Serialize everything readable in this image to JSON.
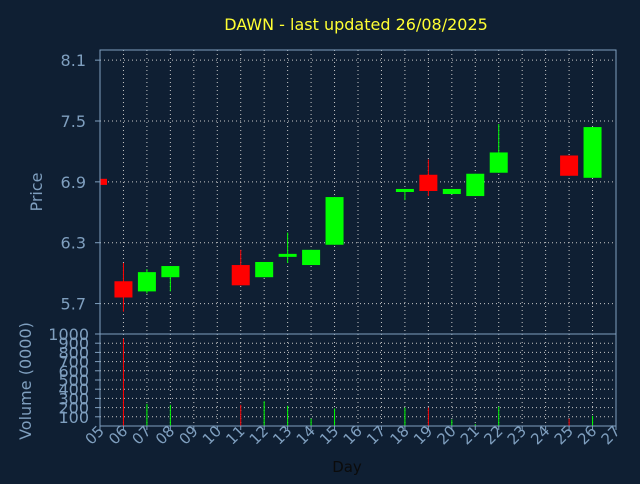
{
  "chart_data": {
    "type": "candlestick",
    "title": "DAWN - last updated 26/08/2025",
    "xlabel": "Day",
    "x_ticks": [
      "05",
      "06",
      "07",
      "08",
      "09",
      "10",
      "11",
      "12",
      "13",
      "14",
      "15",
      "16",
      "17",
      "18",
      "19",
      "20",
      "21",
      "22",
      "23",
      "24",
      "25",
      "26",
      "27"
    ],
    "price_panel": {
      "ylabel": "Price",
      "ylim": [
        5.4,
        8.2
      ],
      "y_ticks": [
        "5.7",
        "6.3",
        "6.9",
        "7.5",
        "8.1"
      ],
      "grid": true,
      "candles": [
        {
          "day": "05",
          "open": 6.93,
          "close": 6.87,
          "high": 6.93,
          "low": 6.87
        },
        {
          "day": "06",
          "open": 5.92,
          "close": 5.76,
          "high": 6.1,
          "low": 5.62
        },
        {
          "day": "07",
          "open": 5.82,
          "close": 6.01,
          "high": 6.04,
          "low": 5.8
        },
        {
          "day": "08",
          "open": 5.96,
          "close": 6.07,
          "high": 6.07,
          "low": 5.82
        },
        {
          "day": "11",
          "open": 6.08,
          "close": 5.88,
          "high": 6.23,
          "low": 5.88
        },
        {
          "day": "12",
          "open": 5.96,
          "close": 6.11,
          "high": 6.11,
          "low": 5.96
        },
        {
          "day": "13",
          "open": 6.17,
          "close": 6.19,
          "high": 6.4,
          "low": 6.1
        },
        {
          "day": "14",
          "open": 6.08,
          "close": 6.23,
          "high": 6.23,
          "low": 6.08
        },
        {
          "day": "15",
          "open": 6.28,
          "close": 6.75,
          "high": 6.75,
          "low": 6.28
        },
        {
          "day": "18",
          "open": 6.8,
          "close": 6.83,
          "high": 6.83,
          "low": 6.72
        },
        {
          "day": "19",
          "open": 6.97,
          "close": 6.81,
          "high": 7.12,
          "low": 6.76
        },
        {
          "day": "20",
          "open": 6.78,
          "close": 6.83,
          "high": 6.83,
          "low": 6.78
        },
        {
          "day": "21",
          "open": 6.76,
          "close": 6.98,
          "high": 6.98,
          "low": 6.76
        },
        {
          "day": "22",
          "open": 6.99,
          "close": 7.19,
          "high": 7.47,
          "low": 6.99
        },
        {
          "day": "25",
          "open": 7.16,
          "close": 6.96,
          "high": 7.16,
          "low": 6.96
        },
        {
          "day": "26",
          "open": 6.94,
          "close": 7.44,
          "high": 7.44,
          "low": 6.94
        }
      ]
    },
    "volume_panel": {
      "ylabel": "Volume (0000)",
      "ylim": [
        0,
        1000
      ],
      "y_ticks": [
        "100",
        "200",
        "300",
        "400",
        "500",
        "600",
        "700",
        "800",
        "900",
        "1000"
      ],
      "grid": true,
      "bars": [
        {
          "day": "06",
          "value": 950
        },
        {
          "day": "07",
          "value": 240
        },
        {
          "day": "08",
          "value": 230
        },
        {
          "day": "11",
          "value": 230
        },
        {
          "day": "12",
          "value": 270
        },
        {
          "day": "13",
          "value": 220
        },
        {
          "day": "14",
          "value": 80
        },
        {
          "day": "15",
          "value": 190
        },
        {
          "day": "18",
          "value": 200
        },
        {
          "day": "19",
          "value": 200
        },
        {
          "day": "20",
          "value": 70
        },
        {
          "day": "21",
          "value": 20
        },
        {
          "day": "22",
          "value": 210
        },
        {
          "day": "25",
          "value": 80
        },
        {
          "day": "26",
          "value": 110
        }
      ]
    },
    "colors": {
      "background": "#0f1f33",
      "axis": "#7f9fbf",
      "grid": "#c8c8c8",
      "title": "#ffff33",
      "up": "#00ff00",
      "down": "#ff0000"
    }
  }
}
